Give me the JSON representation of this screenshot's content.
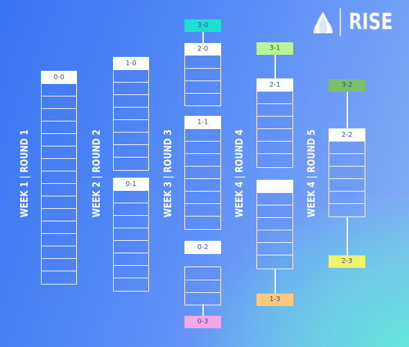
{
  "brand": {
    "name": "RISE",
    "logo_icon": "flame-leaf-icon"
  },
  "rounds": [
    {
      "label": "WEEK 1 | ROUND 1"
    },
    {
      "label": "WEEK 2 | ROUND 2"
    },
    {
      "label": "WEEK 3 | ROUND 3"
    },
    {
      "label": "WEEK 4 | ROUND 4"
    },
    {
      "label": "WEEK 4 | ROUND 5"
    }
  ],
  "brackets": [
    {
      "round": 1,
      "record": "0-0",
      "slots": 16
    },
    {
      "round": 2,
      "record": "1-0",
      "slots": 8
    },
    {
      "round": 2,
      "record": "0-1",
      "slots": 8
    },
    {
      "round": 3,
      "record": "2-0",
      "slots": 4
    },
    {
      "round": 3,
      "record": "1-1",
      "slots": 8
    },
    {
      "round": 3,
      "record": "0-2",
      "slots": 3
    },
    {
      "round": 4,
      "record": "2-1",
      "slots": 6
    },
    {
      "round": 4,
      "record": "",
      "slots": 9
    },
    {
      "round": 5,
      "record": "2-2",
      "slots": 7
    }
  ],
  "outcomes": [
    {
      "record": "3-0",
      "color": "#1de0d0"
    },
    {
      "record": "0-3",
      "color": "#f7a6e6"
    },
    {
      "record": "3-1",
      "color": "#b7f59a"
    },
    {
      "record": "1-3",
      "color": "#ffc97a"
    },
    {
      "record": "3-2",
      "color": "#79c067"
    },
    {
      "record": "2-3",
      "color": "#eef46a"
    }
  ],
  "colors": {
    "line": "#ffffff",
    "text": "#3c4fa8"
  }
}
